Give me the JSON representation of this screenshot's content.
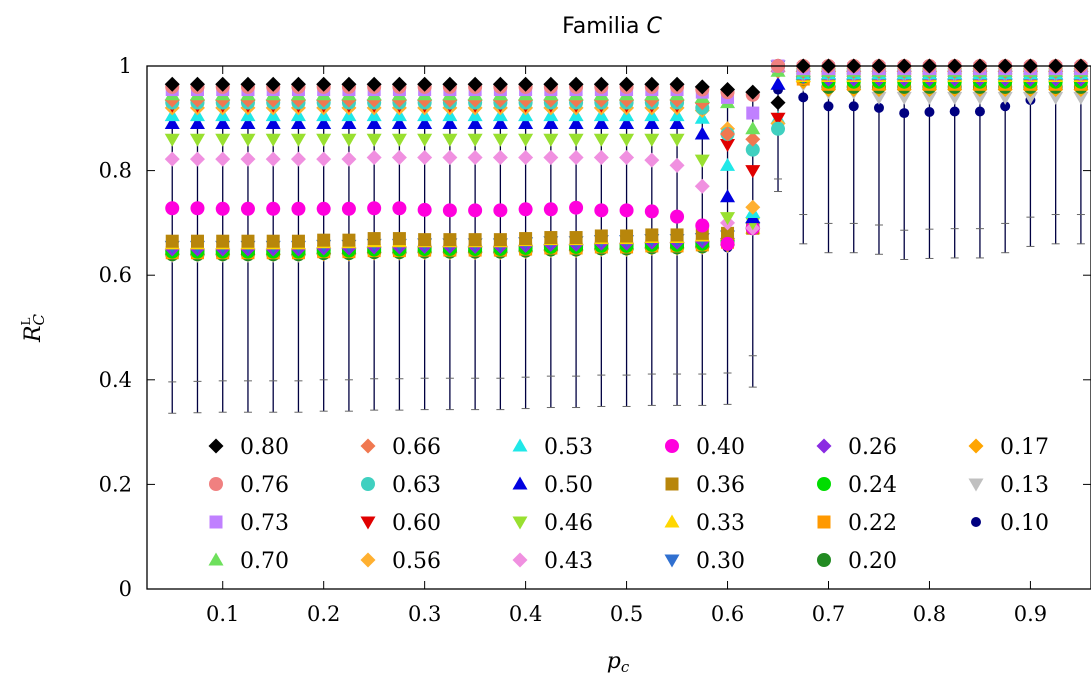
{
  "chart_data": {
    "type": "scatter",
    "title_parts": [
      "Familia ",
      "C"
    ],
    "xlabel_symbol": "p",
    "xlabel_subscript": "c",
    "ylabel_symbol": "R",
    "ylabel_superscript": "L",
    "ylabel_subscript": "C",
    "xlim": [
      0.025,
      0.96
    ],
    "ylim": [
      0,
      1
    ],
    "xticks": [
      "0.1",
      "0.2",
      "0.3",
      "0.4",
      "0.5",
      "0.6",
      "0.7",
      "0.8",
      "0.9"
    ],
    "yticks": [
      "0",
      "0.2",
      "0.4",
      "0.6",
      "0.8",
      "1"
    ],
    "legend_columns": 6,
    "legend_placement": "bottom-left",
    "x": [
      0.05,
      0.075,
      0.1,
      0.125,
      0.15,
      0.175,
      0.2,
      0.225,
      0.25,
      0.275,
      0.3,
      0.325,
      0.35,
      0.375,
      0.4,
      0.425,
      0.45,
      0.475,
      0.5,
      0.525,
      0.55,
      0.575,
      0.6,
      0.625,
      0.65,
      0.675,
      0.7,
      0.725,
      0.75,
      0.775,
      0.8,
      0.825,
      0.85,
      0.875,
      0.9,
      0.925,
      0.95
    ],
    "series": [
      {
        "name": "0.80",
        "marker": "diamond",
        "color": "#000000",
        "values": [
          0.965,
          0.965,
          0.965,
          0.965,
          0.965,
          0.965,
          0.965,
          0.965,
          0.965,
          0.965,
          0.965,
          0.965,
          0.965,
          0.965,
          0.965,
          0.965,
          0.965,
          0.965,
          0.965,
          0.965,
          0.965,
          0.96,
          0.955,
          0.95,
          0.93,
          1.0,
          1.0,
          1.0,
          1.0,
          1.0,
          1.0,
          1.0,
          1.0,
          1.0,
          1.0,
          1.0,
          1.0
        ]
      },
      {
        "name": "0.76",
        "marker": "circle",
        "color": "#f08080",
        "values": [
          0.96,
          0.96,
          0.96,
          0.96,
          0.96,
          0.96,
          0.96,
          0.96,
          0.96,
          0.96,
          0.96,
          0.96,
          0.96,
          0.96,
          0.96,
          0.96,
          0.96,
          0.96,
          0.96,
          0.96,
          0.96,
          0.955,
          0.95,
          0.945,
          1.0,
          1.0,
          1.0,
          1.0,
          1.0,
          1.0,
          1.0,
          1.0,
          1.0,
          1.0,
          1.0,
          1.0,
          1.0
        ]
      },
      {
        "name": "0.73",
        "marker": "square",
        "color": "#c080ff",
        "values": [
          0.955,
          0.955,
          0.955,
          0.955,
          0.955,
          0.955,
          0.955,
          0.955,
          0.955,
          0.955,
          0.955,
          0.955,
          0.955,
          0.955,
          0.955,
          0.955,
          0.955,
          0.955,
          0.955,
          0.955,
          0.955,
          0.95,
          0.94,
          0.91,
          1.0,
          0.995,
          0.995,
          0.995,
          0.995,
          0.995,
          0.995,
          0.995,
          0.995,
          0.995,
          0.995,
          0.995,
          0.995
        ]
      },
      {
        "name": "0.70",
        "marker": "triangle-up",
        "color": "#6ee05c",
        "values": [
          0.945,
          0.945,
          0.945,
          0.945,
          0.945,
          0.945,
          0.945,
          0.945,
          0.945,
          0.945,
          0.945,
          0.945,
          0.945,
          0.945,
          0.945,
          0.945,
          0.945,
          0.945,
          0.945,
          0.945,
          0.945,
          0.94,
          0.93,
          0.88,
          0.99,
          0.99,
          0.99,
          0.99,
          0.99,
          0.99,
          0.99,
          0.99,
          0.99,
          0.99,
          0.99,
          0.99,
          0.99
        ]
      },
      {
        "name": "0.66",
        "marker": "diamond",
        "color": "#f07850",
        "values": [
          0.935,
          0.935,
          0.935,
          0.935,
          0.935,
          0.935,
          0.935,
          0.935,
          0.935,
          0.935,
          0.935,
          0.935,
          0.935,
          0.935,
          0.935,
          0.935,
          0.935,
          0.935,
          0.935,
          0.935,
          0.935,
          0.93,
          0.87,
          0.86,
          0.99,
          0.99,
          0.99,
          0.99,
          0.99,
          0.99,
          0.99,
          0.99,
          0.99,
          0.99,
          0.99,
          0.99,
          0.99
        ]
      },
      {
        "name": "0.63",
        "marker": "circle",
        "color": "#40d0c0",
        "values": [
          0.93,
          0.93,
          0.93,
          0.93,
          0.93,
          0.93,
          0.93,
          0.93,
          0.93,
          0.93,
          0.93,
          0.93,
          0.93,
          0.93,
          0.93,
          0.93,
          0.93,
          0.93,
          0.93,
          0.93,
          0.93,
          0.92,
          0.87,
          0.84,
          0.88,
          0.99,
          0.99,
          0.99,
          0.99,
          0.99,
          0.99,
          0.99,
          0.99,
          0.99,
          0.99,
          0.99,
          0.99
        ]
      },
      {
        "name": "0.60",
        "marker": "triangle-down",
        "color": "#e00000",
        "values": [
          0.925,
          0.925,
          0.925,
          0.925,
          0.925,
          0.925,
          0.925,
          0.925,
          0.925,
          0.925,
          0.925,
          0.925,
          0.925,
          0.925,
          0.925,
          0.925,
          0.925,
          0.925,
          0.925,
          0.925,
          0.925,
          0.92,
          0.85,
          0.8,
          0.9,
          0.99,
          0.99,
          0.99,
          0.99,
          0.99,
          0.99,
          0.99,
          0.99,
          0.99,
          0.99,
          0.99,
          0.99
        ]
      },
      {
        "name": "0.56",
        "marker": "diamond",
        "color": "#ffb030",
        "values": [
          0.92,
          0.92,
          0.92,
          0.92,
          0.92,
          0.92,
          0.92,
          0.92,
          0.92,
          0.92,
          0.92,
          0.92,
          0.92,
          0.92,
          0.92,
          0.92,
          0.92,
          0.92,
          0.92,
          0.92,
          0.92,
          0.915,
          0.88,
          0.73,
          0.89,
          0.99,
          0.99,
          0.99,
          0.99,
          0.99,
          0.99,
          0.99,
          0.99,
          0.99,
          0.99,
          0.99,
          0.99
        ]
      },
      {
        "name": "0.53",
        "marker": "triangle-up",
        "color": "#20e8e8",
        "values": [
          0.905,
          0.905,
          0.905,
          0.905,
          0.905,
          0.905,
          0.905,
          0.905,
          0.905,
          0.905,
          0.905,
          0.905,
          0.905,
          0.905,
          0.905,
          0.905,
          0.905,
          0.905,
          0.905,
          0.905,
          0.905,
          0.9,
          0.81,
          0.72,
          0.9,
          0.985,
          0.985,
          0.985,
          0.985,
          0.985,
          0.985,
          0.985,
          0.985,
          0.985,
          0.985,
          0.985,
          0.985
        ]
      },
      {
        "name": "0.50",
        "marker": "triangle-up",
        "color": "#0000e0",
        "values": [
          0.89,
          0.89,
          0.89,
          0.89,
          0.89,
          0.89,
          0.89,
          0.89,
          0.89,
          0.89,
          0.89,
          0.89,
          0.89,
          0.89,
          0.89,
          0.89,
          0.89,
          0.89,
          0.89,
          0.89,
          0.89,
          0.87,
          0.75,
          0.71,
          0.965,
          0.985,
          0.985,
          0.985,
          0.985,
          0.985,
          0.985,
          0.985,
          0.985,
          0.985,
          0.985,
          0.985,
          0.985
        ]
      },
      {
        "name": "0.46",
        "marker": "triangle-down",
        "color": "#99e030",
        "values": [
          0.86,
          0.86,
          0.86,
          0.86,
          0.86,
          0.86,
          0.86,
          0.86,
          0.86,
          0.86,
          0.86,
          0.86,
          0.86,
          0.86,
          0.86,
          0.86,
          0.86,
          0.86,
          0.86,
          0.86,
          0.86,
          0.82,
          0.71,
          0.7,
          0.99,
          0.985,
          0.985,
          0.985,
          0.985,
          0.985,
          0.985,
          0.985,
          0.985,
          0.985,
          0.985,
          0.985,
          0.985
        ]
      },
      {
        "name": "0.43",
        "marker": "diamond",
        "color": "#f090e0",
        "values": [
          0.822,
          0.822,
          0.822,
          0.822,
          0.822,
          0.822,
          0.822,
          0.822,
          0.825,
          0.825,
          0.825,
          0.825,
          0.825,
          0.825,
          0.825,
          0.825,
          0.825,
          0.825,
          0.825,
          0.82,
          0.81,
          0.77,
          0.7,
          0.69,
          0.99,
          0.985,
          0.985,
          0.985,
          0.985,
          0.985,
          0.985,
          0.985,
          0.985,
          0.985,
          0.985,
          0.985,
          0.985
        ]
      },
      {
        "name": "0.40",
        "marker": "circle",
        "color": "#ff00dd",
        "values": [
          0.728,
          0.728,
          0.727,
          0.727,
          0.727,
          0.727,
          0.727,
          0.727,
          0.728,
          0.728,
          0.725,
          0.724,
          0.724,
          0.724,
          0.726,
          0.726,
          0.729,
          0.724,
          0.724,
          0.722,
          0.712,
          0.695,
          0.66,
          0.69,
          1.0,
          0.985,
          0.985,
          0.985,
          0.985,
          0.985,
          0.985,
          0.985,
          0.985,
          0.985,
          0.985,
          0.985,
          0.985
        ]
      },
      {
        "name": "0.36",
        "marker": "square",
        "color": "#b8860b",
        "values": [
          0.665,
          0.665,
          0.665,
          0.665,
          0.665,
          0.665,
          0.667,
          0.667,
          0.67,
          0.67,
          0.668,
          0.668,
          0.668,
          0.668,
          0.67,
          0.672,
          0.672,
          0.675,
          0.675,
          0.677,
          0.677,
          0.68,
          0.68,
          0.69,
          1.0,
          0.985,
          0.985,
          0.985,
          0.985,
          0.985,
          0.985,
          0.985,
          0.985,
          0.985,
          0.985,
          0.985,
          0.985
        ]
      },
      {
        "name": "0.33",
        "marker": "triangle-up",
        "color": "#ffd700",
        "values": [
          0.66,
          0.66,
          0.66,
          0.66,
          0.66,
          0.66,
          0.662,
          0.662,
          0.664,
          0.664,
          0.664,
          0.664,
          0.664,
          0.664,
          0.666,
          0.668,
          0.668,
          0.67,
          0.67,
          0.672,
          0.672,
          0.675,
          0.678,
          0.69,
          1.0,
          0.98,
          0.98,
          0.98,
          0.98,
          0.98,
          0.98,
          0.98,
          0.98,
          0.98,
          0.98,
          0.98,
          0.98
        ]
      },
      {
        "name": "0.30",
        "marker": "triangle-down",
        "color": "#3070d0",
        "values": [
          0.655,
          0.655,
          0.655,
          0.655,
          0.655,
          0.655,
          0.657,
          0.657,
          0.659,
          0.659,
          0.66,
          0.66,
          0.66,
          0.66,
          0.662,
          0.664,
          0.664,
          0.666,
          0.666,
          0.668,
          0.668,
          0.67,
          0.675,
          0.69,
          1.0,
          0.98,
          0.98,
          0.98,
          0.98,
          0.98,
          0.98,
          0.98,
          0.98,
          0.98,
          0.98,
          0.98,
          0.98
        ]
      },
      {
        "name": "0.26",
        "marker": "diamond",
        "color": "#8a2be2",
        "values": [
          0.65,
          0.65,
          0.65,
          0.65,
          0.65,
          0.65,
          0.652,
          0.652,
          0.654,
          0.654,
          0.655,
          0.655,
          0.655,
          0.655,
          0.657,
          0.659,
          0.659,
          0.661,
          0.661,
          0.663,
          0.663,
          0.665,
          0.67,
          0.69,
          1.0,
          0.98,
          0.975,
          0.975,
          0.975,
          0.975,
          0.975,
          0.975,
          0.975,
          0.975,
          0.975,
          0.975,
          0.975
        ]
      },
      {
        "name": "0.24",
        "marker": "circle",
        "color": "#00dd00",
        "values": [
          0.645,
          0.645,
          0.645,
          0.645,
          0.645,
          0.645,
          0.647,
          0.647,
          0.649,
          0.649,
          0.65,
          0.65,
          0.65,
          0.65,
          0.652,
          0.654,
          0.654,
          0.656,
          0.656,
          0.658,
          0.658,
          0.66,
          0.665,
          0.69,
          1.0,
          0.98,
          0.97,
          0.97,
          0.97,
          0.97,
          0.97,
          0.97,
          0.97,
          0.97,
          0.97,
          0.97,
          0.97
        ]
      },
      {
        "name": "0.22",
        "marker": "square",
        "color": "#ff9900",
        "values": [
          0.643,
          0.643,
          0.643,
          0.643,
          0.643,
          0.643,
          0.645,
          0.645,
          0.647,
          0.647,
          0.648,
          0.648,
          0.648,
          0.648,
          0.65,
          0.652,
          0.652,
          0.654,
          0.654,
          0.656,
          0.656,
          0.658,
          0.663,
          0.69,
          1.0,
          0.975,
          0.965,
          0.965,
          0.965,
          0.965,
          0.965,
          0.965,
          0.965,
          0.965,
          0.965,
          0.965,
          0.965
        ]
      },
      {
        "name": "0.20",
        "marker": "circle",
        "color": "#228b22",
        "values": [
          0.64,
          0.64,
          0.64,
          0.64,
          0.64,
          0.64,
          0.642,
          0.642,
          0.644,
          0.644,
          0.645,
          0.645,
          0.645,
          0.645,
          0.647,
          0.649,
          0.649,
          0.651,
          0.651,
          0.653,
          0.653,
          0.655,
          0.66,
          0.69,
          1.0,
          0.975,
          0.96,
          0.96,
          0.96,
          0.96,
          0.96,
          0.96,
          0.96,
          0.96,
          0.96,
          0.96,
          0.96
        ]
      },
      {
        "name": "0.17",
        "marker": "diamond",
        "color": "#ffa500",
        "values": [
          0.64,
          0.64,
          0.64,
          0.64,
          0.64,
          0.64,
          0.641,
          0.641,
          0.643,
          0.643,
          0.644,
          0.644,
          0.644,
          0.644,
          0.646,
          0.648,
          0.648,
          0.65,
          0.65,
          0.652,
          0.652,
          0.654,
          0.658,
          0.69,
          1.0,
          0.97,
          0.955,
          0.955,
          0.955,
          0.955,
          0.955,
          0.955,
          0.955,
          0.955,
          0.955,
          0.955,
          0.955
        ]
      },
      {
        "name": "0.13",
        "marker": "triangle-down",
        "color": "#c0c0c0",
        "values": [
          0.638,
          0.638,
          0.638,
          0.638,
          0.638,
          0.638,
          0.64,
          0.64,
          0.642,
          0.642,
          0.643,
          0.643,
          0.643,
          0.643,
          0.645,
          0.647,
          0.647,
          0.649,
          0.649,
          0.651,
          0.651,
          0.653,
          0.656,
          0.69,
          1.0,
          0.965,
          0.95,
          0.95,
          0.94,
          0.94,
          0.94,
          0.94,
          0.94,
          0.94,
          0.94,
          0.94,
          0.94
        ]
      },
      {
        "name": "0.10",
        "marker": "circle-small",
        "color": "#000080",
        "values": [
          0.636,
          0.637,
          0.638,
          0.638,
          0.639,
          0.639,
          0.64,
          0.641,
          0.642,
          0.642,
          0.645,
          0.646,
          0.648,
          0.648,
          0.65,
          0.651,
          0.652,
          0.652,
          0.652,
          0.652,
          0.652,
          0.651,
          0.653,
          0.686,
          0.955,
          0.94,
          0.923,
          0.923,
          0.92,
          0.91,
          0.912,
          0.913,
          0.913,
          0.923,
          0.935,
          0.95,
          0.972
        ]
      }
    ]
  }
}
